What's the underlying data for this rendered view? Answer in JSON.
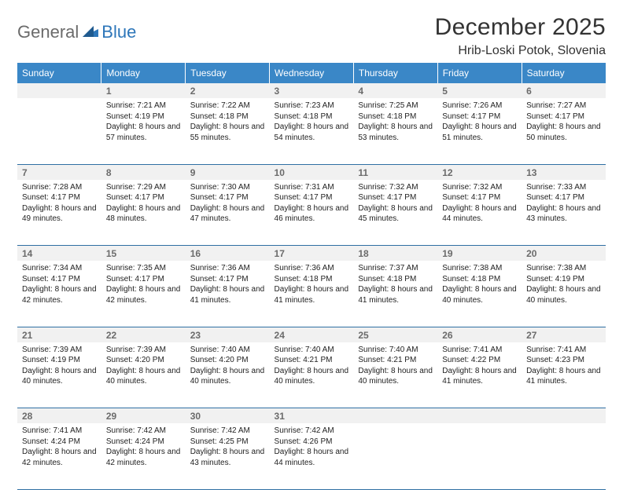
{
  "logo": {
    "text_a": "General",
    "text_b": "Blue"
  },
  "title": "December 2025",
  "location": "Hrib-Loski Potok, Slovenia",
  "header_color": "#3a87c7",
  "divider_color": "#2f6fa3",
  "daynum_bg": "#f1f1f1",
  "weekdays": [
    "Sunday",
    "Monday",
    "Tuesday",
    "Wednesday",
    "Thursday",
    "Friday",
    "Saturday"
  ],
  "weeks": [
    {
      "nums": [
        "",
        "1",
        "2",
        "3",
        "4",
        "5",
        "6"
      ],
      "cells": [
        null,
        {
          "sunrise": "7:21 AM",
          "sunset": "4:19 PM",
          "daylight": "8 hours and 57 minutes."
        },
        {
          "sunrise": "7:22 AM",
          "sunset": "4:18 PM",
          "daylight": "8 hours and 55 minutes."
        },
        {
          "sunrise": "7:23 AM",
          "sunset": "4:18 PM",
          "daylight": "8 hours and 54 minutes."
        },
        {
          "sunrise": "7:25 AM",
          "sunset": "4:18 PM",
          "daylight": "8 hours and 53 minutes."
        },
        {
          "sunrise": "7:26 AM",
          "sunset": "4:17 PM",
          "daylight": "8 hours and 51 minutes."
        },
        {
          "sunrise": "7:27 AM",
          "sunset": "4:17 PM",
          "daylight": "8 hours and 50 minutes."
        }
      ]
    },
    {
      "nums": [
        "7",
        "8",
        "9",
        "10",
        "11",
        "12",
        "13"
      ],
      "cells": [
        {
          "sunrise": "7:28 AM",
          "sunset": "4:17 PM",
          "daylight": "8 hours and 49 minutes."
        },
        {
          "sunrise": "7:29 AM",
          "sunset": "4:17 PM",
          "daylight": "8 hours and 48 minutes."
        },
        {
          "sunrise": "7:30 AM",
          "sunset": "4:17 PM",
          "daylight": "8 hours and 47 minutes."
        },
        {
          "sunrise": "7:31 AM",
          "sunset": "4:17 PM",
          "daylight": "8 hours and 46 minutes."
        },
        {
          "sunrise": "7:32 AM",
          "sunset": "4:17 PM",
          "daylight": "8 hours and 45 minutes."
        },
        {
          "sunrise": "7:32 AM",
          "sunset": "4:17 PM",
          "daylight": "8 hours and 44 minutes."
        },
        {
          "sunrise": "7:33 AM",
          "sunset": "4:17 PM",
          "daylight": "8 hours and 43 minutes."
        }
      ]
    },
    {
      "nums": [
        "14",
        "15",
        "16",
        "17",
        "18",
        "19",
        "20"
      ],
      "cells": [
        {
          "sunrise": "7:34 AM",
          "sunset": "4:17 PM",
          "daylight": "8 hours and 42 minutes."
        },
        {
          "sunrise": "7:35 AM",
          "sunset": "4:17 PM",
          "daylight": "8 hours and 42 minutes."
        },
        {
          "sunrise": "7:36 AM",
          "sunset": "4:17 PM",
          "daylight": "8 hours and 41 minutes."
        },
        {
          "sunrise": "7:36 AM",
          "sunset": "4:18 PM",
          "daylight": "8 hours and 41 minutes."
        },
        {
          "sunrise": "7:37 AM",
          "sunset": "4:18 PM",
          "daylight": "8 hours and 41 minutes."
        },
        {
          "sunrise": "7:38 AM",
          "sunset": "4:18 PM",
          "daylight": "8 hours and 40 minutes."
        },
        {
          "sunrise": "7:38 AM",
          "sunset": "4:19 PM",
          "daylight": "8 hours and 40 minutes."
        }
      ]
    },
    {
      "nums": [
        "21",
        "22",
        "23",
        "24",
        "25",
        "26",
        "27"
      ],
      "cells": [
        {
          "sunrise": "7:39 AM",
          "sunset": "4:19 PM",
          "daylight": "8 hours and 40 minutes."
        },
        {
          "sunrise": "7:39 AM",
          "sunset": "4:20 PM",
          "daylight": "8 hours and 40 minutes."
        },
        {
          "sunrise": "7:40 AM",
          "sunset": "4:20 PM",
          "daylight": "8 hours and 40 minutes."
        },
        {
          "sunrise": "7:40 AM",
          "sunset": "4:21 PM",
          "daylight": "8 hours and 40 minutes."
        },
        {
          "sunrise": "7:40 AM",
          "sunset": "4:21 PM",
          "daylight": "8 hours and 40 minutes."
        },
        {
          "sunrise": "7:41 AM",
          "sunset": "4:22 PM",
          "daylight": "8 hours and 41 minutes."
        },
        {
          "sunrise": "7:41 AM",
          "sunset": "4:23 PM",
          "daylight": "8 hours and 41 minutes."
        }
      ]
    },
    {
      "nums": [
        "28",
        "29",
        "30",
        "31",
        "",
        "",
        ""
      ],
      "cells": [
        {
          "sunrise": "7:41 AM",
          "sunset": "4:24 PM",
          "daylight": "8 hours and 42 minutes."
        },
        {
          "sunrise": "7:42 AM",
          "sunset": "4:24 PM",
          "daylight": "8 hours and 42 minutes."
        },
        {
          "sunrise": "7:42 AM",
          "sunset": "4:25 PM",
          "daylight": "8 hours and 43 minutes."
        },
        {
          "sunrise": "7:42 AM",
          "sunset": "4:26 PM",
          "daylight": "8 hours and 44 minutes."
        },
        null,
        null,
        null
      ]
    }
  ],
  "labels": {
    "sunrise": "Sunrise:",
    "sunset": "Sunset:",
    "daylight": "Daylight:"
  }
}
